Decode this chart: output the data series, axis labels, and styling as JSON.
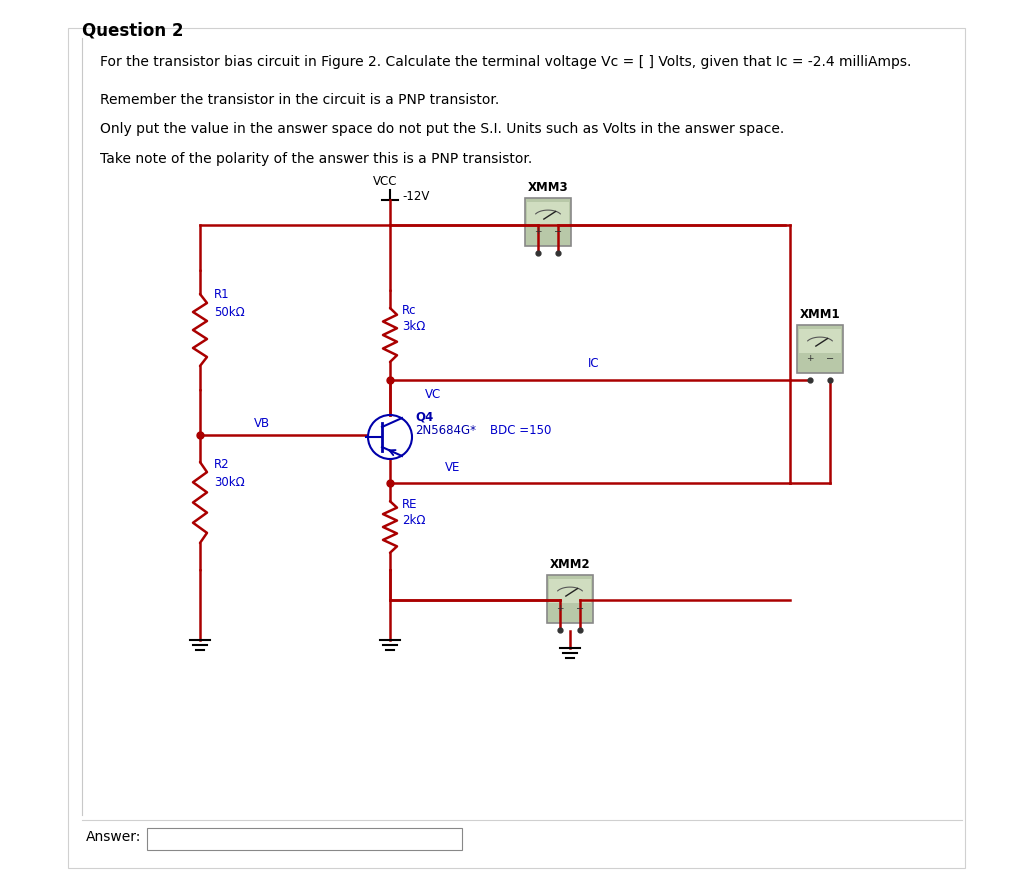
{
  "title": "Question 2",
  "line1": "For the transistor bias circuit in Figure 2. Calculate the terminal voltage Vᴄ = [ ] Volts, given that Iᴄ = -2.4 milliAmps.",
  "line2": "Remember the transistor in the circuit is a PNP transistor.",
  "line3": "Only put the value in the answer space do not put the S.I. Units such as Volts in the answer space.",
  "line4": "Take note of the polarity of the answer this is a PNP transistor.",
  "answer_label": "Answer:",
  "vcc_label": "VCC",
  "vcc_value": "-12V",
  "xmm3_label": "XMM3",
  "xmm1_label": "XMM1",
  "xmm2_label": "XMM2",
  "ic_label": "IC",
  "vc_label": "VC",
  "ve_label": "VE",
  "vb_label": "VB",
  "rc_label": "Rc",
  "rc_value": "3kΩ",
  "r1_label": "R1",
  "r1_value": "50kΩ",
  "r2_label": "R2",
  "r2_value": "30kΩ",
  "re_label": "RE",
  "re_value": "2kΩ",
  "transistor_label": "Q4",
  "transistor_model": "2N5684G*",
  "transistor_spec": "BDC =150",
  "bg_color": "#ffffff",
  "text_color": "#000000",
  "circuit_line_color": "#aa0000",
  "component_text_color": "#0000cc",
  "meter_bg": "#b8c8a8",
  "meter_border": "#888888",
  "font_size_title": 12,
  "font_size_body": 10,
  "font_size_circuit": 8.5
}
